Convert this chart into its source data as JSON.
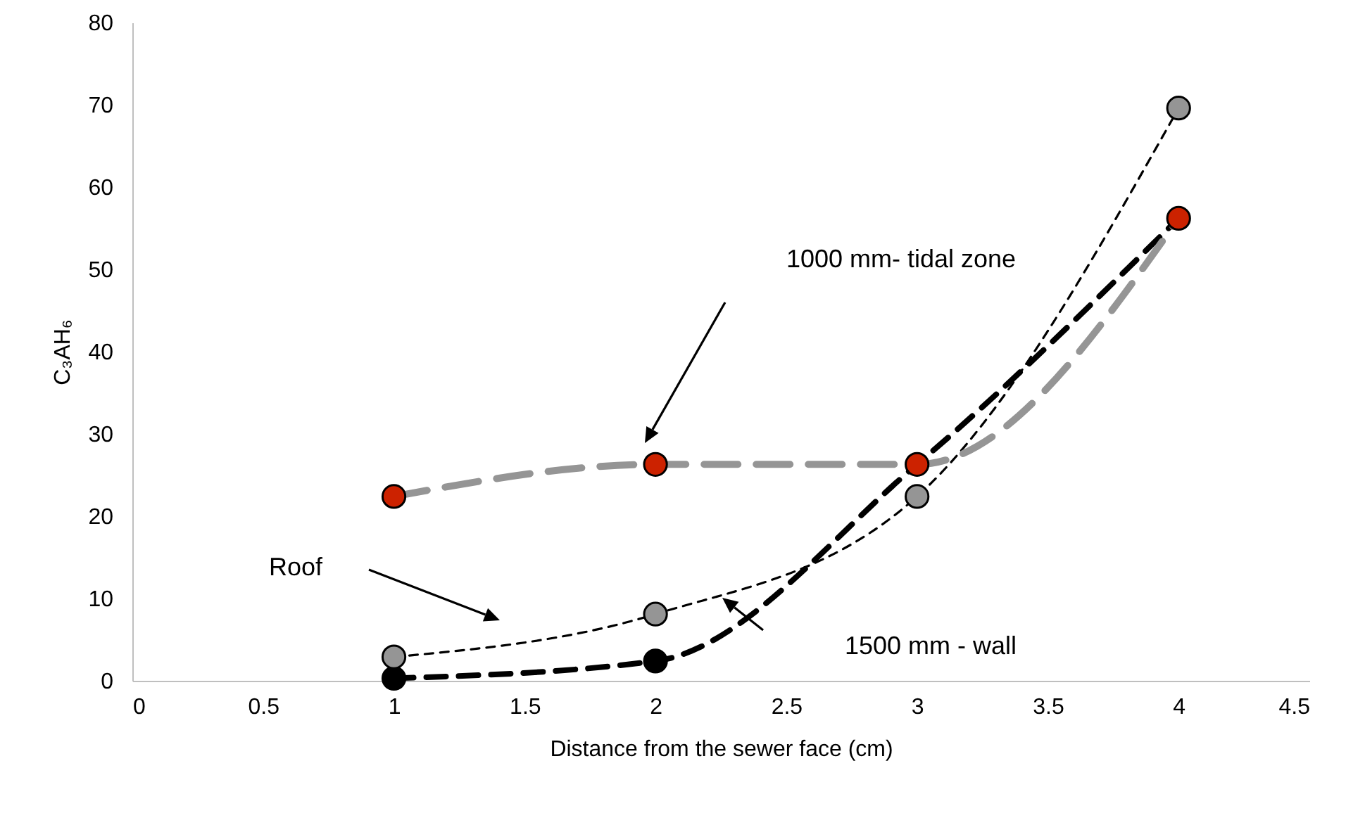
{
  "chart_data": {
    "type": "line",
    "xlabel": "Distance from the sewer face (cm)",
    "ylabel": "C₃AH₆",
    "x": [
      1,
      2,
      3,
      4
    ],
    "series": [
      {
        "color": "#000000",
        "line_style": "dashed",
        "marker": "none",
        "values": [
          0.3,
          2.4,
          26.3,
          56.2
        ]
      },
      {
        "color": "#000000",
        "line_style": "dashed",
        "marker": "none",
        "values": [
          2.9,
          8.1,
          22.4,
          69.6
        ]
      },
      {
        "color": "#959595",
        "line_style": "dashed",
        "marker": "none",
        "values": [
          22.4,
          26.3,
          26.3,
          56.2
        ]
      },
      {
        "type": "scatter",
        "color": "#000000",
        "marker": "circle",
        "values": [
          0.3,
          2.4,
          null,
          null
        ]
      },
      {
        "type": "scatter",
        "color": "#959595",
        "marker": "circle",
        "values": [
          2.9,
          8.1,
          22.4,
          69.6
        ]
      },
      {
        "type": "scatter",
        "color": "#cc2200",
        "marker": "circle",
        "values": [
          22.4,
          26.3,
          26.3,
          56.2
        ]
      }
    ],
    "annotations": [
      "1000 mm- tidal zone",
      "Roof",
      "1500 mm - wall"
    ],
    "xlim": [
      0,
      4.5
    ],
    "xticks": [
      0,
      0.5,
      1,
      1.5,
      2,
      2.5,
      3,
      3.5,
      4,
      4.5
    ],
    "ylim": [
      0,
      80
    ],
    "yticks": [
      0,
      10,
      20,
      30,
      40,
      50,
      60,
      70,
      80
    ],
    "grid": false
  }
}
